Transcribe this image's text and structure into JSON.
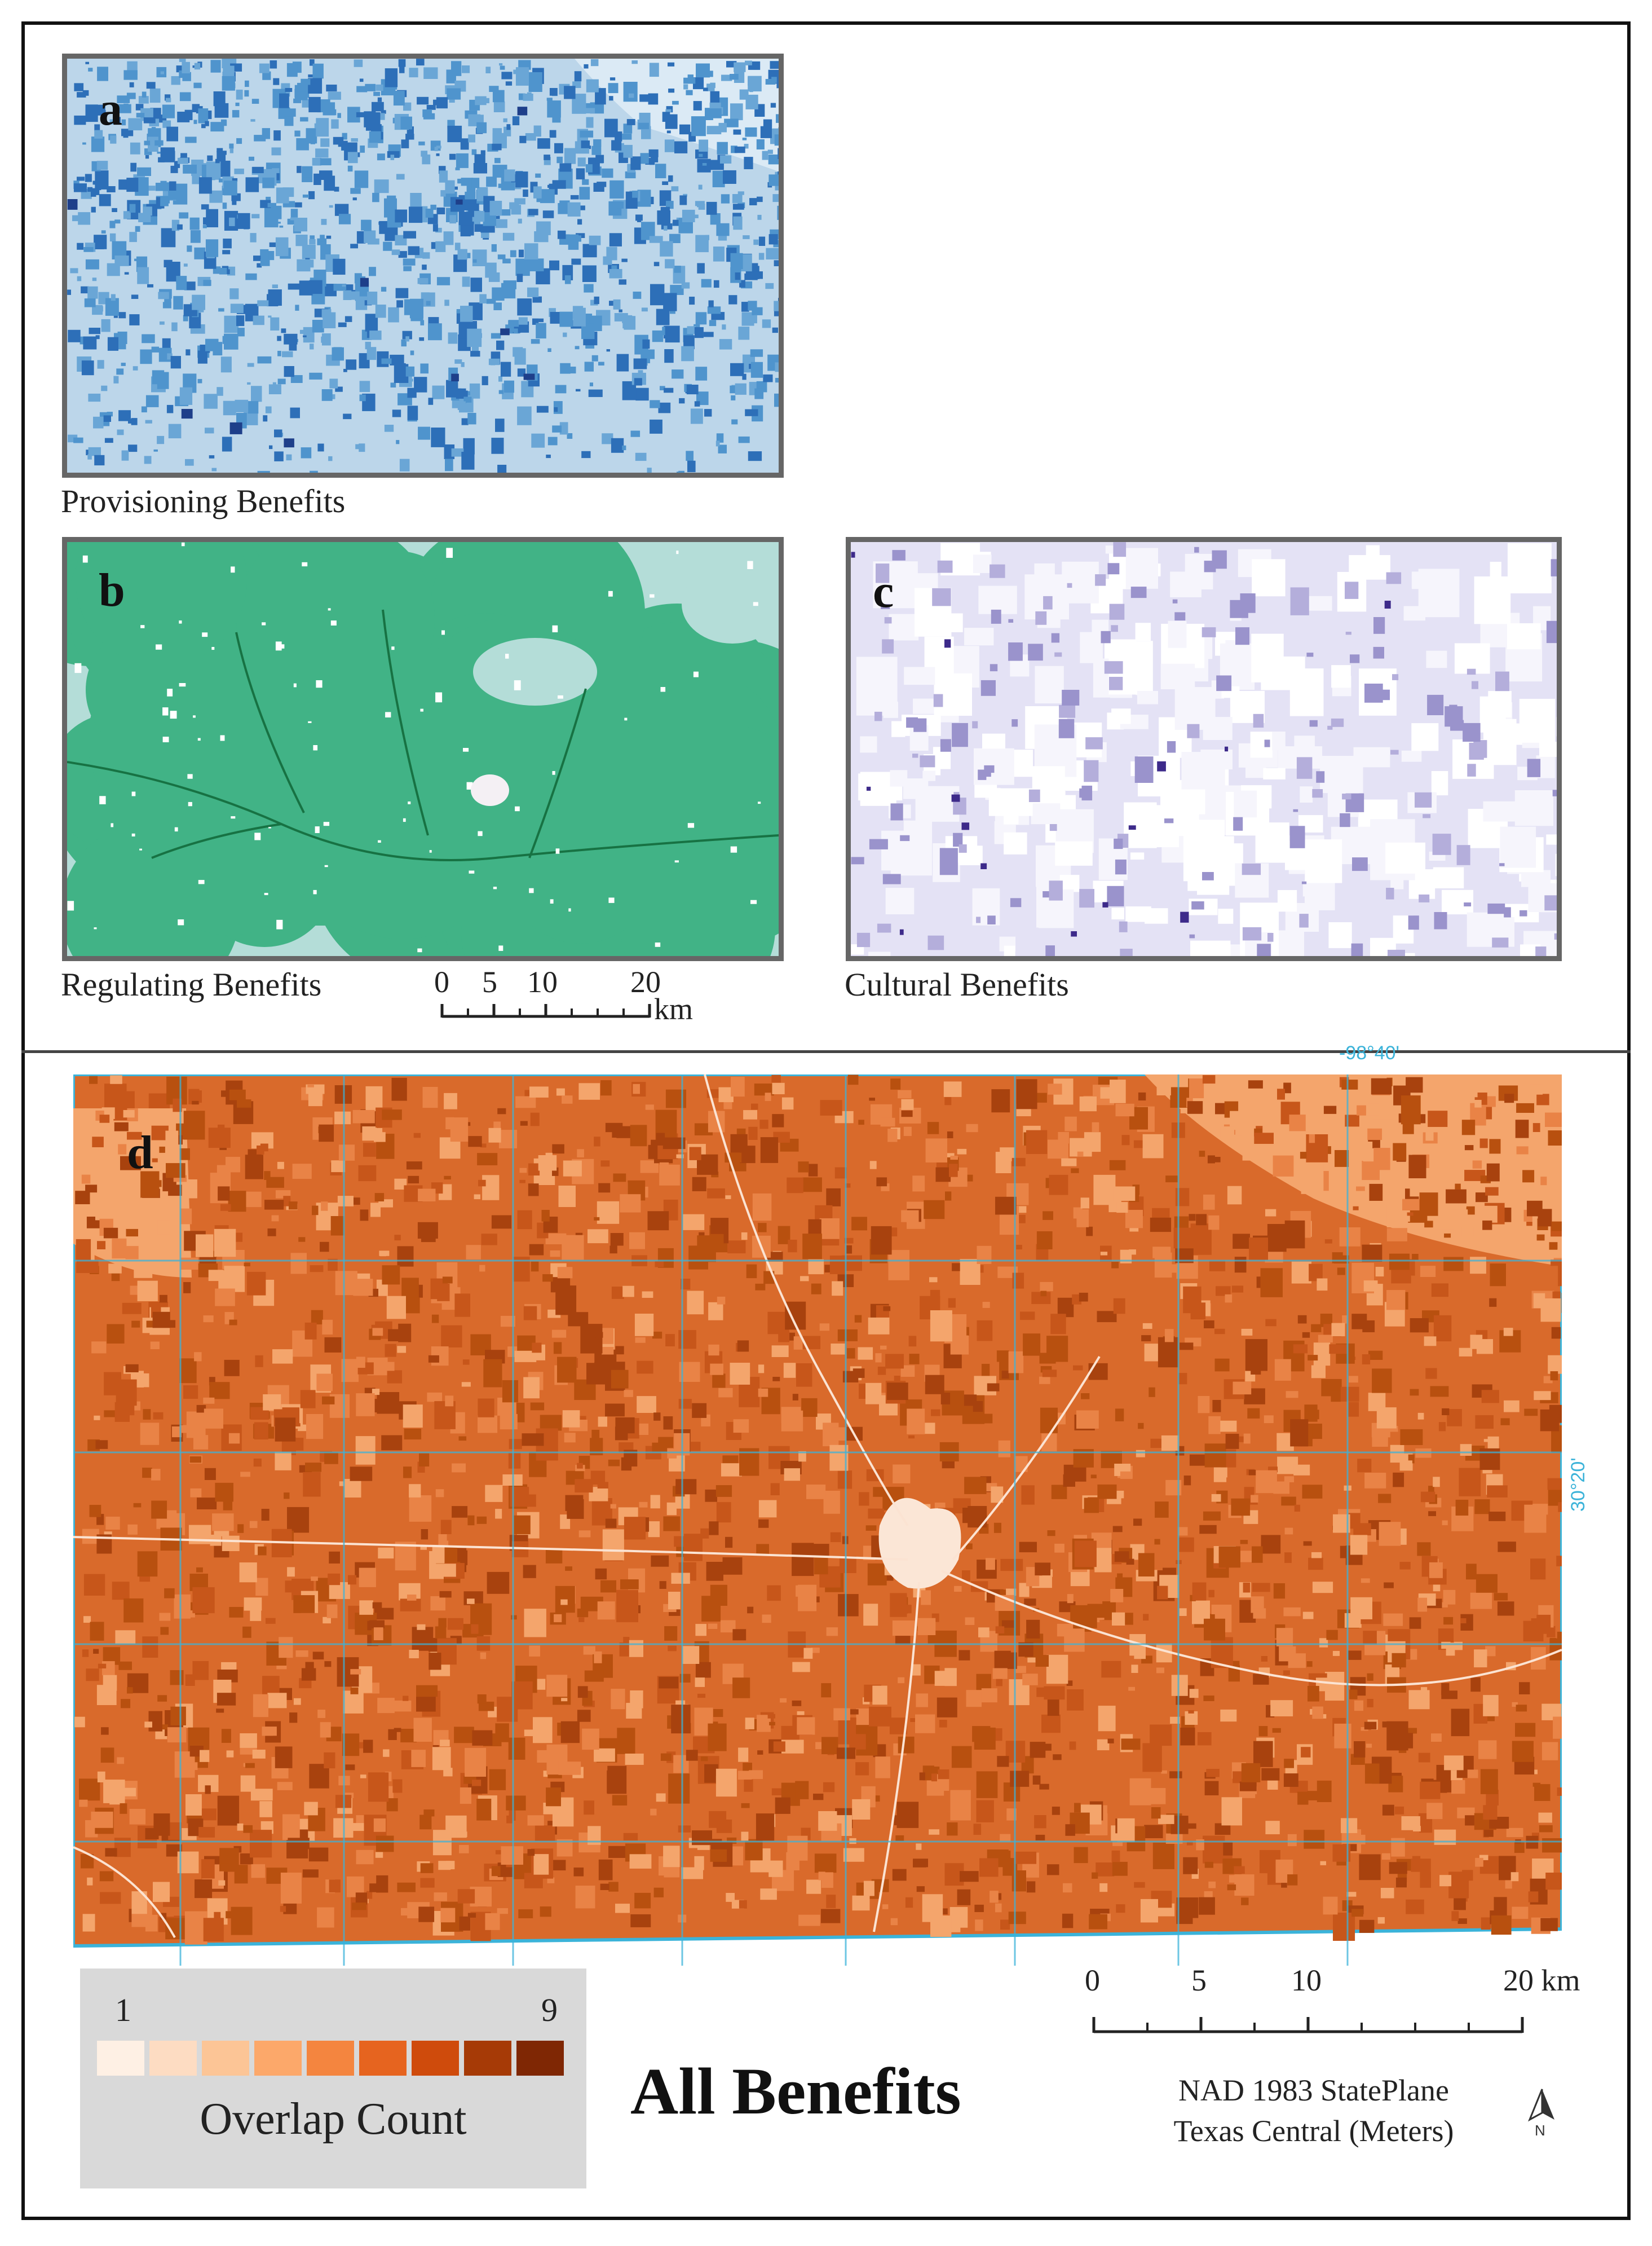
{
  "panels": {
    "a": {
      "letter": "a",
      "caption": "Provisioning Benefits"
    },
    "b": {
      "letter": "b",
      "caption": "Regulating Benefits"
    },
    "c": {
      "letter": "c",
      "caption": "Cultural Benefits"
    },
    "d": {
      "letter": "d",
      "title": "All Benefits"
    }
  },
  "small_scalebar": {
    "ticks": [
      "0",
      "5",
      "10",
      "20"
    ],
    "unit": "km"
  },
  "large_scalebar": {
    "ticks": [
      "0",
      "5",
      "10",
      "20 km"
    ]
  },
  "coordinates": {
    "longitude": "-98°40'",
    "latitude": "30°20'"
  },
  "legend": {
    "title": "Overlap Count",
    "min": "1",
    "max": "9",
    "colors": [
      "#fef0e4",
      "#fddcc2",
      "#fcc596",
      "#fca86a",
      "#f4853f",
      "#e6641f",
      "#cf4b0c",
      "#a63a06",
      "#7f2704"
    ]
  },
  "projection": {
    "line1": "NAD 1983 StatePlane",
    "line2": "Texas Central (Meters)"
  },
  "north_arrow": {
    "label": "N"
  },
  "map_colors": {
    "provisioning_light": "#bcd6ea",
    "provisioning_mid": "#4f94cd",
    "provisioning_dark": "#2d6fb8",
    "regulating_base": "#41b386",
    "regulating_light": "#b4ddd8",
    "regulating_dark": "#177243",
    "cultural_light": "#e4e2f5",
    "cultural_mid": "#9a93cc",
    "cultural_dark": "#3d2a8a",
    "all_base": "#d96a2b",
    "all_dark": "#a8420e",
    "all_light": "#f4a56c",
    "grid": "#3bb3d9"
  }
}
